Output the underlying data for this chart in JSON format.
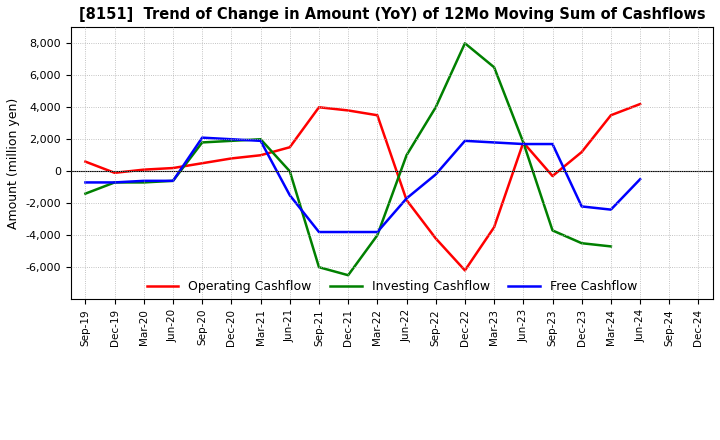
{
  "title": "[8151]  Trend of Change in Amount (YoY) of 12Mo Moving Sum of Cashflows",
  "ylabel": "Amount (million yen)",
  "x_labels": [
    "Sep-19",
    "Dec-19",
    "Mar-20",
    "Jun-20",
    "Sep-20",
    "Dec-20",
    "Mar-21",
    "Jun-21",
    "Sep-21",
    "Dec-21",
    "Mar-22",
    "Jun-22",
    "Sep-22",
    "Dec-22",
    "Mar-23",
    "Jun-23",
    "Sep-23",
    "Dec-23",
    "Mar-24",
    "Jun-24",
    "Sep-24",
    "Dec-24"
  ],
  "operating_cashflow": [
    600,
    -100,
    100,
    200,
    500,
    800,
    1000,
    1500,
    4000,
    3800,
    3500,
    -1800,
    -4200,
    -6200,
    -3500,
    1800,
    -300,
    1200,
    3500,
    4200,
    null,
    null
  ],
  "investing_cashflow": [
    -1400,
    -700,
    -700,
    -600,
    1800,
    1900,
    2000,
    0,
    -6000,
    -6500,
    -4000,
    1000,
    4000,
    8000,
    6500,
    1800,
    -3700,
    -4500,
    -4700,
    null,
    null,
    null
  ],
  "free_cashflow": [
    -700,
    -700,
    -600,
    -600,
    2100,
    2000,
    1900,
    -1500,
    -3800,
    -3800,
    -3800,
    -1700,
    -200,
    1900,
    1800,
    1700,
    1700,
    -2200,
    -2400,
    -500,
    null,
    null
  ],
  "ylim": [
    -8000,
    9000
  ],
  "yticks": [
    -6000,
    -4000,
    -2000,
    0,
    2000,
    4000,
    6000,
    8000
  ],
  "operating_color": "#ff0000",
  "investing_color": "#008000",
  "free_color": "#0000ff",
  "legend_labels": [
    "Operating Cashflow",
    "Investing Cashflow",
    "Free Cashflow"
  ],
  "background_color": "#ffffff",
  "grid_color": "#b0b0b0"
}
